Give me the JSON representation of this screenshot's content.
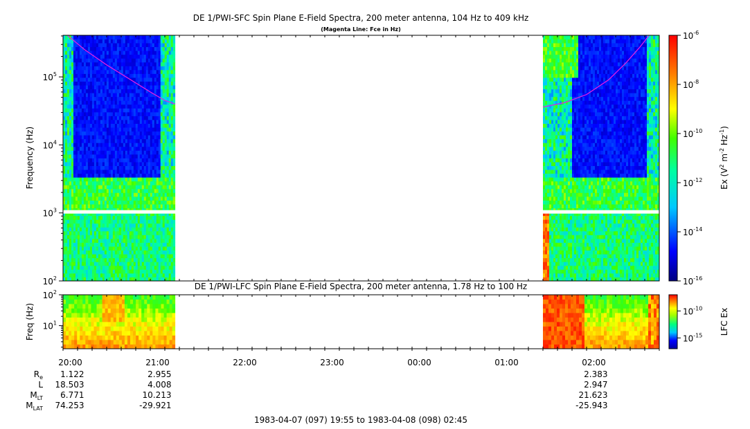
{
  "chart_data": [
    {
      "type": "heatmap",
      "title": "DE 1/PWI-SFC  Spin Plane E-Field Spectra, 200 meter antenna, 104 Hz to 409 kHz",
      "subtitle": "(Magenta Line: Fce in Hz)",
      "ylabel": "Frequency (Hz)",
      "yscale": "log",
      "ylim": [
        100,
        409000
      ],
      "y_ticks": [
        {
          "value": 100,
          "base": "10",
          "exp": "2"
        },
        {
          "value": 1000,
          "base": "10",
          "exp": "3"
        },
        {
          "value": 10000,
          "base": "10",
          "exp": "4"
        },
        {
          "value": 100000,
          "base": "10",
          "exp": "5"
        }
      ],
      "data_gap_hz": 1000,
      "data_intervals": [
        {
          "start": "19:55",
          "end": "21:12"
        },
        {
          "start": "01:25",
          "end": "02:45"
        }
      ],
      "colorbar": {
        "label_main": "Ex (V",
        "label_sup1": "2",
        "label_mid": " m",
        "label_sup2": "-2",
        "label_mid2": " Hz",
        "label_sup3": "-1",
        "label_end": ")",
        "scale": "log",
        "range": [
          1e-16,
          1e-06
        ],
        "ticks": [
          {
            "value": 1e-06,
            "base": "10",
            "exp": "-6"
          },
          {
            "value": 1e-08,
            "base": "10",
            "exp": "-8"
          },
          {
            "value": 1e-10,
            "base": "10",
            "exp": "-10"
          },
          {
            "value": 1e-12,
            "base": "10",
            "exp": "-12"
          },
          {
            "value": 1e-14,
            "base": "10",
            "exp": "-14"
          },
          {
            "value": 1e-16,
            "base": "10",
            "exp": "-16"
          }
        ]
      },
      "fce_line": {
        "name": "Fce in Hz",
        "color": "#e020e0",
        "segments": [
          {
            "x": [
              "19:58",
              "20:10",
              "20:25",
              "20:40",
              "20:55",
              "21:05",
              "21:12"
            ],
            "y": [
              409000,
              250000,
              150000,
              95000,
              60000,
              45000,
              40000
            ]
          },
          {
            "x": [
              "01:25",
              "01:40",
              "01:55",
              "02:10",
              "02:22",
              "02:32",
              "02:38"
            ],
            "y": [
              36000,
              42000,
              55000,
              90000,
              160000,
              280000,
              409000
            ]
          }
        ]
      }
    },
    {
      "type": "heatmap",
      "title": "DE 1/PWI-LFC  Spin Plane E-Field Spectra, 200 meter antenna, 1.78 Hz to 100 Hz",
      "ylabel": "Freq (Hz)",
      "yscale": "log",
      "ylim": [
        1.78,
        100
      ],
      "y_ticks": [
        {
          "value": 10,
          "base": "10",
          "exp": "1"
        },
        {
          "value": 100,
          "base": "10",
          "exp": "2"
        }
      ],
      "data_intervals": [
        {
          "start": "19:55",
          "end": "21:12"
        },
        {
          "start": "01:25",
          "end": "02:45"
        }
      ],
      "colorbar": {
        "label": "LFC Ex",
        "scale": "log",
        "range": [
          1e-17,
          1e-07
        ],
        "ticks": [
          {
            "value": 1e-10,
            "base": "10",
            "exp": "-10"
          },
          {
            "value": 1e-15,
            "base": "10",
            "exp": "-15"
          }
        ]
      }
    }
  ],
  "x_axis": {
    "start_minutes": 1195,
    "end_minutes": 1605,
    "tick_labels": [
      {
        "label": "20:00",
        "minutes": 1200
      },
      {
        "label": "21:00",
        "minutes": 1260
      },
      {
        "label": "22:00",
        "minutes": 1320
      },
      {
        "label": "23:00",
        "minutes": 1380
      },
      {
        "label": "00:00",
        "minutes": 1440
      },
      {
        "label": "01:00",
        "minutes": 1500
      },
      {
        "label": "02:00",
        "minutes": 1560
      }
    ],
    "time_range_label": "1983-04-07 (097) 19:55 to 1983-04-08 (098) 02:45"
  },
  "ephemeris": {
    "rows": [
      {
        "label_base": "R",
        "label_sub": "e",
        "values": [
          "1.122",
          "2.955",
          "",
          "",
          "",
          "",
          "2.383"
        ]
      },
      {
        "label_base": "L",
        "label_sub": "",
        "values": [
          "18.503",
          "4.008",
          "",
          "",
          "",
          "",
          "2.947"
        ]
      },
      {
        "label_base": "M",
        "label_sub": "LT",
        "values": [
          "6.771",
          "10.213",
          "",
          "",
          "",
          "",
          "21.623"
        ]
      },
      {
        "label_base": "M",
        "label_sub": "LAT",
        "values": [
          "74.253",
          "-29.921",
          "",
          "",
          "",
          "",
          "-25.943"
        ]
      }
    ]
  }
}
